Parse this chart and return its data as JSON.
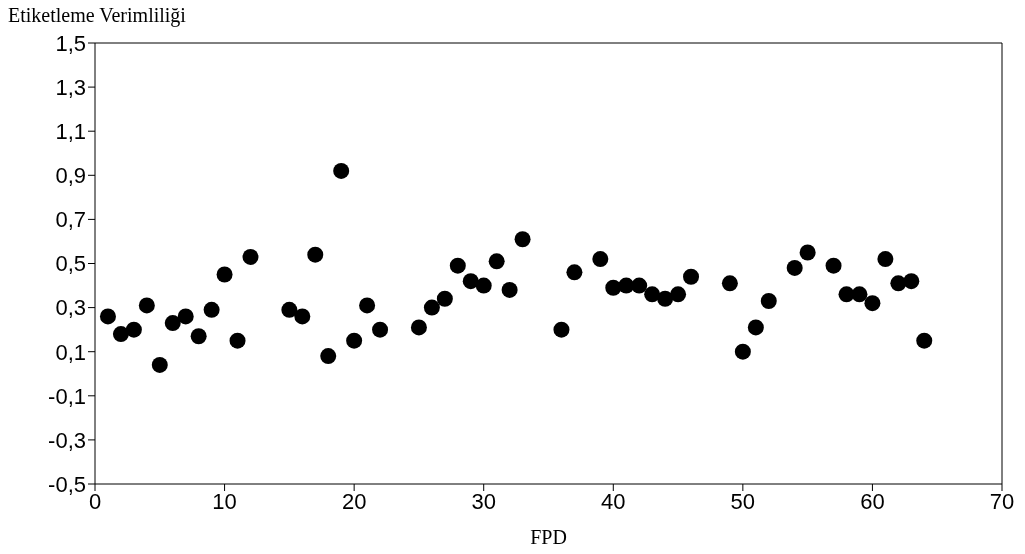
{
  "chart_data": {
    "type": "scatter",
    "ylabel": "Etiketleme Verimliliği",
    "xlabel": "FPD",
    "x": [
      1,
      2,
      3,
      4,
      5,
      6,
      7,
      8,
      9,
      10,
      11,
      12,
      15,
      16,
      17,
      18,
      19,
      20,
      21,
      22,
      25,
      26,
      27,
      28,
      29,
      30,
      31,
      32,
      33,
      36,
      37,
      39,
      40,
      41,
      42,
      43,
      44,
      45,
      46,
      49,
      50,
      51,
      52,
      54,
      55,
      57,
      58,
      59,
      60,
      61,
      62,
      63,
      64
    ],
    "series": [
      {
        "color": "#000000",
        "values": [
          0.26,
          0.18,
          0.2,
          0.31,
          0.04,
          0.23,
          0.26,
          0.17,
          0.29,
          0.45,
          0.15,
          0.53,
          0.29,
          0.26,
          0.54,
          0.08,
          0.92,
          0.15,
          0.31,
          0.2,
          0.21,
          0.3,
          0.34,
          0.49,
          0.42,
          0.4,
          0.51,
          0.38,
          0.61,
          0.2,
          0.46,
          0.52,
          0.39,
          0.4,
          0.4,
          0.36,
          0.34,
          0.36,
          0.44,
          0.41,
          0.1,
          0.21,
          0.33,
          0.48,
          0.55,
          0.49,
          0.36,
          0.36,
          0.32,
          0.52,
          0.41,
          0.42,
          0.15
        ]
      }
    ],
    "xlim": [
      0,
      70
    ],
    "xticks": [
      0,
      10,
      20,
      30,
      40,
      50,
      60,
      70
    ],
    "ylim": [
      -0.5,
      1.5
    ],
    "yticks": [
      {
        "value": -0.5,
        "label": "-0,5"
      },
      {
        "value": -0.3,
        "label": "-0,3"
      },
      {
        "value": -0.1,
        "label": "-0,1"
      },
      {
        "value": 0.1,
        "label": "0,1"
      },
      {
        "value": 0.3,
        "label": "0,3"
      },
      {
        "value": 0.5,
        "label": "0,5"
      },
      {
        "value": 0.7,
        "label": "0,7"
      },
      {
        "value": 0.9,
        "label": "0,9"
      },
      {
        "value": 1.1,
        "label": "1,1"
      },
      {
        "value": 1.3,
        "label": "1,3"
      },
      {
        "value": 1.5,
        "label": "1,5"
      }
    ],
    "marker": "circle",
    "grid": false,
    "legend": false
  }
}
